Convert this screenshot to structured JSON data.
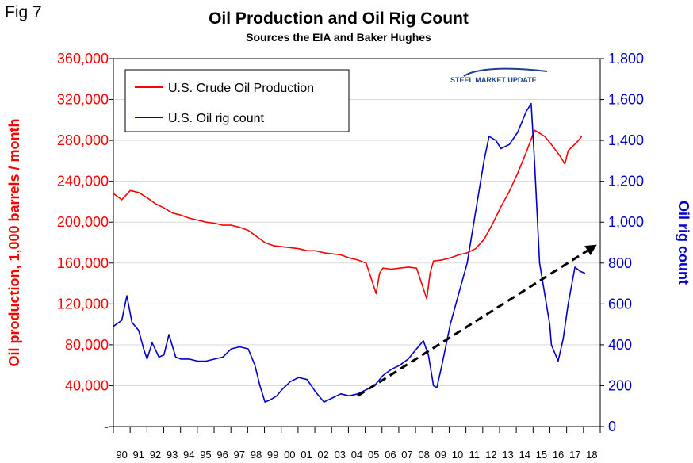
{
  "fig_label": "Fig 7",
  "logo_text": "STEEL MARKET UPDATE",
  "colors": {
    "production": "#ff0000",
    "rigs": "#0000cc",
    "trend": "#000000",
    "axis": "#000000",
    "grid": "#d9d9d9"
  },
  "chart_data": {
    "type": "line",
    "title": "Oil Production and Oil Rig Count",
    "subtitle": "Sources the EIA and Baker Hughes",
    "ylabel_left": "Oil production, 1,000 barrels / month",
    "ylabel_right": "Oil rig count",
    "x_range": [
      1990,
      2018.9
    ],
    "ylim_left": [
      0,
      360000
    ],
    "ylim_right": [
      0,
      1800
    ],
    "yticks_left": [
      "-",
      "40,000",
      "80,000",
      "120,000",
      "160,000",
      "200,000",
      "240,000",
      "280,000",
      "320,000",
      "360,000"
    ],
    "yticks_right": [
      "0",
      "200",
      "400",
      "600",
      "800",
      "1,000",
      "1,200",
      "1,400",
      "1,600",
      "1,800"
    ],
    "xticks": [
      "90",
      "91",
      "92",
      "93",
      "94",
      "95",
      "96",
      "97",
      "98",
      "99",
      "00",
      "01",
      "02",
      "03",
      "04",
      "05",
      "06",
      "07",
      "08",
      "09",
      "10",
      "11",
      "12",
      "13",
      "14",
      "15",
      "16",
      "17",
      "18"
    ],
    "grid": true,
    "legend_position": "top-left",
    "series": [
      {
        "name": "U.S. Crude Oil Production",
        "axis": "left",
        "x": [
          1990.0,
          1990.5,
          1991.0,
          1991.5,
          1992.0,
          1992.5,
          1993.0,
          1993.5,
          1994.0,
          1994.5,
          1995.0,
          1995.5,
          1996.0,
          1996.5,
          1997.0,
          1997.5,
          1998.0,
          1998.5,
          1999.0,
          1999.5,
          2000.0,
          2000.5,
          2001.0,
          2001.5,
          2002.0,
          2002.5,
          2003.0,
          2003.5,
          2004.0,
          2004.5,
          2005.0,
          2005.6,
          2005.8,
          2006.0,
          2006.5,
          2007.0,
          2007.5,
          2008.0,
          2008.6,
          2008.8,
          2009.0,
          2009.5,
          2010.0,
          2010.5,
          2011.0,
          2011.5,
          2012.0,
          2012.5,
          2013.0,
          2013.5,
          2014.0,
          2014.5,
          2015.0,
          2015.3,
          2015.6,
          2016.0,
          2016.5,
          2016.8,
          2017.0,
          2017.5,
          2017.8
        ],
        "y": [
          228000,
          222000,
          231000,
          229000,
          224000,
          218000,
          214000,
          209000,
          207000,
          204000,
          202000,
          200000,
          199000,
          197000,
          197000,
          195000,
          192000,
          186000,
          180000,
          177000,
          176000,
          175000,
          174000,
          172000,
          172000,
          170000,
          169000,
          168000,
          165000,
          163000,
          160000,
          130000,
          150000,
          155000,
          154000,
          155000,
          156000,
          155000,
          125000,
          150000,
          162000,
          163000,
          165000,
          168000,
          170000,
          174000,
          183000,
          198000,
          215000,
          230000,
          248000,
          268000,
          290000,
          287000,
          284000,
          276000,
          265000,
          257000,
          270000,
          278000,
          284000
        ]
      },
      {
        "name": "U.S. Oil rig count",
        "axis": "right",
        "x": [
          1990.0,
          1990.5,
          1990.8,
          1991.1,
          1991.5,
          1991.8,
          1992.0,
          1992.3,
          1992.7,
          1993.0,
          1993.3,
          1993.7,
          1994.0,
          1994.5,
          1995.0,
          1995.5,
          1996.0,
          1996.5,
          1997.0,
          1997.5,
          1998.0,
          1998.4,
          1998.7,
          1999.0,
          1999.3,
          1999.7,
          2000.0,
          2000.5,
          2001.0,
          2001.5,
          2002.0,
          2002.5,
          2003.0,
          2003.5,
          2004.0,
          2004.5,
          2005.0,
          2005.5,
          2006.0,
          2006.5,
          2007.0,
          2007.5,
          2008.0,
          2008.4,
          2008.7,
          2009.0,
          2009.2,
          2009.5,
          2010.0,
          2010.5,
          2011.0,
          2011.5,
          2012.0,
          2012.3,
          2012.7,
          2013.0,
          2013.5,
          2014.0,
          2014.5,
          2014.8,
          2015.0,
          2015.3,
          2015.6,
          2015.9,
          2016.0,
          2016.4,
          2016.7,
          2017.0,
          2017.4,
          2017.7,
          2018.0
        ],
        "y": [
          490,
          520,
          640,
          510,
          470,
          380,
          330,
          410,
          340,
          350,
          450,
          340,
          330,
          330,
          320,
          320,
          330,
          340,
          380,
          390,
          380,
          300,
          200,
          120,
          130,
          150,
          180,
          220,
          240,
          230,
          170,
          120,
          140,
          160,
          150,
          160,
          180,
          200,
          250,
          280,
          300,
          330,
          380,
          420,
          350,
          200,
          190,
          300,
          500,
          650,
          800,
          1050,
          1300,
          1420,
          1400,
          1360,
          1380,
          1440,
          1540,
          1580,
          1300,
          800,
          650,
          500,
          400,
          320,
          430,
          600,
          780,
          760,
          750
        ]
      }
    ],
    "trend_arrow": {
      "from": [
        2004.5,
        150
      ],
      "to": [
        2018.7,
        890
      ],
      "axis": "right",
      "style": "dashed"
    }
  }
}
